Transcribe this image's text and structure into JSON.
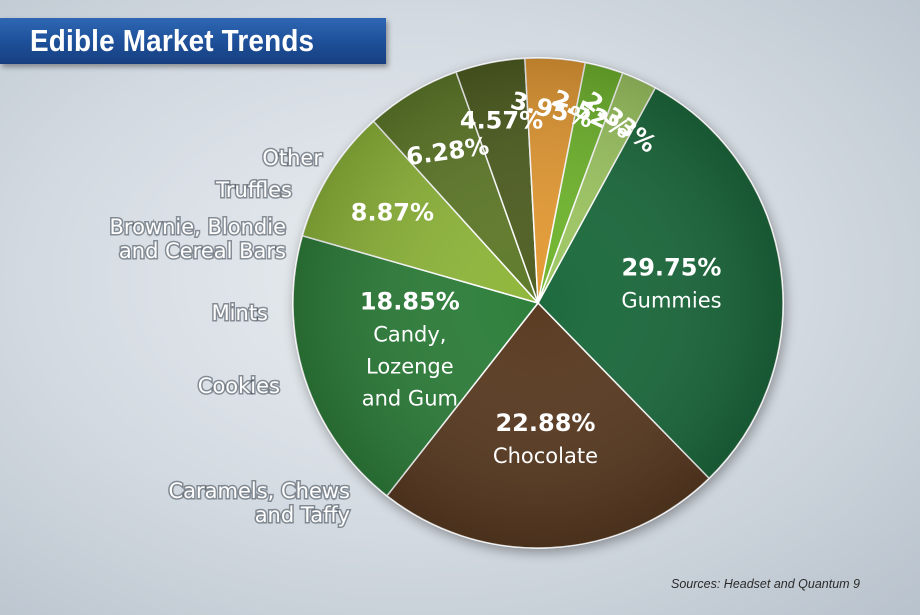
{
  "title": "Edible Market Trends",
  "source": "Sources: Headset and Quantum 9",
  "chart_data": {
    "type": "pie",
    "title": "Edible Market Trends",
    "unit": "%",
    "slices": [
      {
        "label": "Gummies",
        "value": 29.75,
        "value_label": "29.75%",
        "color": "#1f6b3c"
      },
      {
        "label": "Chocolate",
        "value": 22.88,
        "value_label": "22.88%",
        "color": "#5a3b22"
      },
      {
        "label": "Candy, Lozenge and Gum",
        "value": 18.85,
        "value_label": "18.85%",
        "color": "#2f7f3a"
      },
      {
        "label": "Caramels, Chews and Taffy",
        "value": 8.87,
        "value_label": "8.87%",
        "color": "#8fb63a"
      },
      {
        "label": "Cookies",
        "value": 6.28,
        "value_label": "6.28%",
        "color": "#5e7a2a"
      },
      {
        "label": "Mints",
        "value": 4.57,
        "value_label": "4.57%",
        "color": "#4f5e22"
      },
      {
        "label": "Brownie, Blondie and Cereal Bars",
        "value": 3.95,
        "value_label": "3.95%",
        "color": "#e39a36"
      },
      {
        "label": "Truffles",
        "value": 2.52,
        "value_label": "2.52%",
        "color": "#6fb52e"
      },
      {
        "label": "Other",
        "value": 2.33,
        "value_label": "2.33%",
        "color": "#9ec764"
      }
    ]
  }
}
